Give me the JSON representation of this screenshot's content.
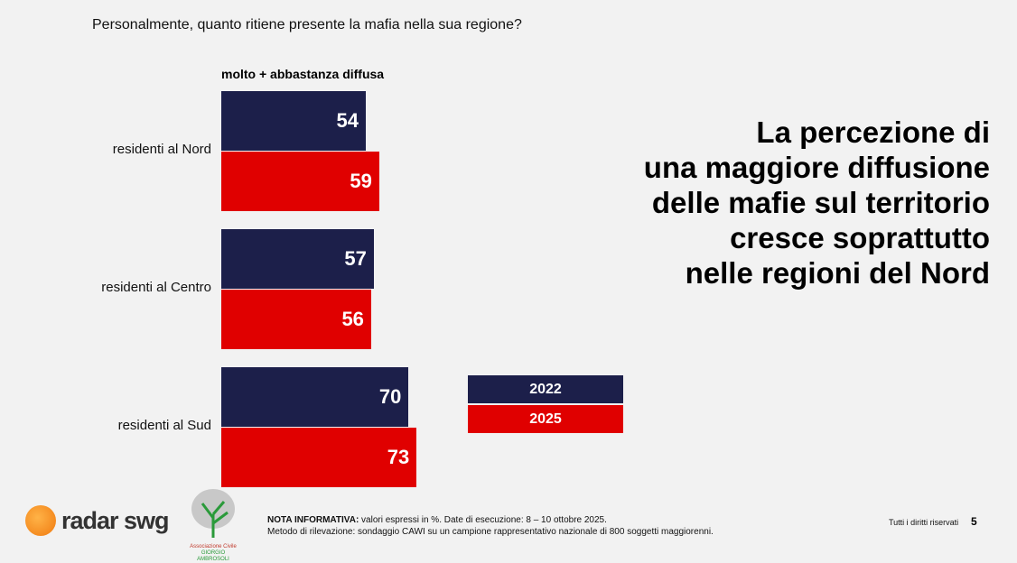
{
  "question": "Personalmente, quanto ritiene presente la mafia nella sua regione?",
  "headline": [
    "La percezione di",
    "una maggiore diffusione",
    "delle mafie sul territorio",
    "cresce soprattutto",
    "nelle regioni del Nord"
  ],
  "chart_data": {
    "type": "bar",
    "orientation": "horizontal",
    "subtitle": "molto + abbastanza diffusa",
    "categories": [
      "residenti al Nord",
      "residenti al Centro",
      "residenti al Sud"
    ],
    "series": [
      {
        "name": "2022",
        "color": "#1c1f4a",
        "values": [
          54,
          57,
          70
        ]
      },
      {
        "name": "2025",
        "color": "#e00000",
        "values": [
          59,
          56,
          73
        ]
      }
    ],
    "legend": "right"
  },
  "footer": {
    "brand": "radar swg",
    "assoc_logo": "Associazione Civile GIORGIO AMBROSOLI",
    "note_label": "NOTA INFORMATIVA:",
    "note_text": " valori espressi in %. Date di esecuzione: 8 – 10 ottobre 2025.",
    "method": "Metodo di rilevazione: sondaggio CAWI su un campione rappresentativo nazionale di 800 soggetti maggiorenni.",
    "rights": "Tutti i diritti riservati",
    "page": "5"
  }
}
